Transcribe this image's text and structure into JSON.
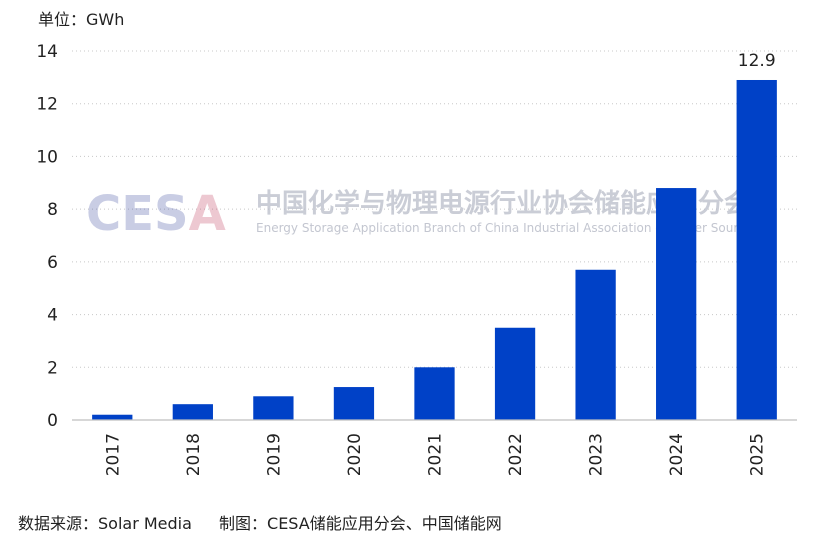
{
  "chart_data": {
    "type": "bar",
    "unit_label": "单位：GWh",
    "categories": [
      "2017",
      "2018",
      "2019",
      "2020",
      "2021",
      "2022",
      "2023",
      "2024",
      "2025"
    ],
    "values": [
      0.2,
      0.6,
      0.9,
      1.25,
      2.0,
      3.5,
      5.7,
      8.8,
      12.9
    ],
    "data_labels": [
      {
        "category": "2025",
        "text": "12.9"
      }
    ],
    "ylim": [
      0,
      14
    ],
    "yticks": [
      0,
      2,
      4,
      6,
      8,
      10,
      12,
      14
    ],
    "grid": true,
    "bar_color": "#0041c7"
  },
  "watermark": {
    "logo": "CESA",
    "logo_colors": [
      "#3c4a9e",
      "#c03a5a"
    ],
    "chinese": "中国化学与物理电源行业协会储能应用分会",
    "english": "Energy Storage Application Branch of China Industrial Association of Power Sources"
  },
  "footer": {
    "source": "数据来源：Solar Media",
    "credit": "制图：CESA储能应用分会、中国储能网"
  }
}
